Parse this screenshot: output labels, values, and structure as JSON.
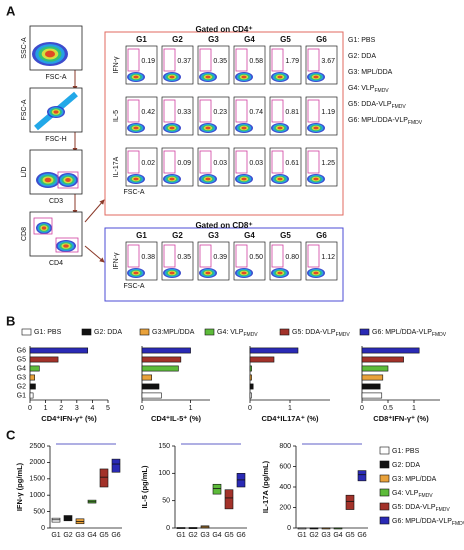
{
  "panels": {
    "A": {
      "label": "A",
      "left_plots": [
        {
          "y": "SSC-A",
          "x": "FSC-A"
        },
        {
          "y": "FSC-A",
          "x": "FSC-H"
        },
        {
          "y": "L/D",
          "x": "CD3"
        },
        {
          "y": "CD8",
          "x": "CD4"
        }
      ],
      "cd4": {
        "title": "Gated on CD4⁺",
        "groups": [
          "G1",
          "G2",
          "G3",
          "G4",
          "G5",
          "G6"
        ],
        "x_axis": "FSC-A",
        "rows": [
          {
            "marker": "IFN-γ",
            "values": [
              "0.19",
              "0.37",
              "0.35",
              "0.58",
              "1.79",
              "3.67"
            ]
          },
          {
            "marker": "IL-5",
            "values": [
              "0.42",
              "0.33",
              "0.23",
              "0.74",
              "0.81",
              "1.19"
            ]
          },
          {
            "marker": "IL-17A",
            "values": [
              "0.02",
              "0.09",
              "0.03",
              "0.03",
              "0.61",
              "1.25"
            ]
          }
        ]
      },
      "cd8": {
        "title": "Gated on CD8⁺",
        "groups": [
          "G1",
          "G2",
          "G3",
          "G4",
          "G5",
          "G6"
        ],
        "x_axis": "FSC-A",
        "rows": [
          {
            "marker": "IFN-γ",
            "values": [
              "0.38",
              "0.35",
              "0.39",
              "0.50",
              "0.80",
              "1.12"
            ]
          }
        ]
      },
      "legend": [
        {
          "text": "G1: PBS"
        },
        {
          "text": "G2: DDA"
        },
        {
          "text": "G3: MPL/DDA"
        },
        {
          "text": "G4: VLP",
          "sub": "FMDV"
        },
        {
          "text": "G5: DDA-VLP",
          "sub": "FMDV"
        },
        {
          "text": "G6: MPL/DDA-VLP",
          "sub": "FMDV"
        }
      ]
    },
    "B": {
      "label": "B",
      "colors": [
        "#ffffff",
        "#111111",
        "#e9a23b",
        "#5dbb3a",
        "#a3322a",
        "#2a2ab5"
      ],
      "legend": [
        {
          "text": "G1: PBS"
        },
        {
          "text": "G2: DDA"
        },
        {
          "text": "G3:MPL/DDA"
        },
        {
          "text": "G4: VLP",
          "sub": "FMDV"
        },
        {
          "text": "G5: DDA-VLP",
          "sub": "FMDV"
        },
        {
          "text": "G6: MPL/DDA-VLP",
          "sub": "FMDV"
        }
      ],
      "categories": [
        "G1",
        "G2",
        "G3",
        "G4",
        "G5",
        "G6"
      ],
      "charts": [
        {
          "type": "bar",
          "xlabel": "CD4⁺IFN-γ⁺ (%)",
          "xlim": [
            0,
            5
          ],
          "xticks": [
            0,
            1,
            2,
            3,
            4,
            5
          ],
          "values": [
            0.2,
            0.35,
            0.3,
            0.6,
            1.8,
            3.7
          ]
        },
        {
          "type": "bar",
          "xlabel": "CD4⁺IL-5⁺ (%)",
          "xlim": [
            0,
            1.4
          ],
          "xticks": [
            0,
            1
          ],
          "values": [
            0.4,
            0.35,
            0.2,
            0.75,
            0.8,
            1.0
          ]
        },
        {
          "type": "bar",
          "xlabel": "CD4⁺IL17A⁺ (%)",
          "xlim": [
            0,
            2
          ],
          "xticks": [
            0,
            1
          ],
          "values": [
            0.03,
            0.08,
            0.04,
            0.04,
            0.6,
            1.2
          ]
        },
        {
          "type": "bar",
          "xlabel": "CD8⁺IFN-γ⁺ (%)",
          "xlim": [
            0,
            1.5
          ],
          "xticks": [
            0,
            0.5,
            1
          ],
          "values": [
            0.38,
            0.35,
            0.4,
            0.5,
            0.8,
            1.1
          ]
        }
      ]
    },
    "C": {
      "label": "C",
      "colors": [
        "#ffffff",
        "#111111",
        "#e9a23b",
        "#5dbb3a",
        "#a3322a",
        "#2a2ab5"
      ],
      "categories": [
        "G1",
        "G2",
        "G3",
        "G4",
        "G5",
        "G6"
      ],
      "legend": [
        {
          "text": "G1: PBS"
        },
        {
          "text": "G2: DDA"
        },
        {
          "text": "G3: MPL/DDA"
        },
        {
          "text": "G4: VLP",
          "sub": "FMDV"
        },
        {
          "text": "G5: DDA-VLP",
          "sub": "FMDV"
        },
        {
          "text": "G6: MPL/DDA-VLP",
          "sub": "FMDV"
        }
      ],
      "charts": [
        {
          "type": "box",
          "ylabel": "IFN-γ (pg/mL)",
          "ylim": [
            0,
            2500
          ],
          "yticks": [
            0,
            500,
            1000,
            1500,
            2000,
            2500
          ],
          "values": [
            250,
            300,
            200,
            800,
            1550,
            1950
          ],
          "low": [
            180,
            220,
            130,
            760,
            1250,
            1700
          ],
          "high": [
            300,
            380,
            280,
            850,
            1800,
            2100
          ]
        },
        {
          "type": "box",
          "ylabel": "IL-5 (pg/mL)",
          "ylim": [
            0,
            150
          ],
          "yticks": [
            0,
            50,
            100,
            150
          ],
          "values": [
            0,
            0,
            2,
            72,
            55,
            88
          ],
          "low": [
            0,
            0,
            0,
            62,
            35,
            75
          ],
          "high": [
            1,
            1,
            4,
            80,
            70,
            100
          ]
        },
        {
          "type": "box",
          "ylabel": "IL-17A (pg/mL)",
          "ylim": [
            0,
            800
          ],
          "yticks": [
            0,
            200,
            400,
            600,
            800
          ],
          "values": [
            0,
            0,
            0,
            0,
            260,
            520
          ],
          "low": [
            0,
            0,
            0,
            0,
            180,
            460
          ],
          "high": [
            2,
            2,
            2,
            2,
            320,
            560
          ]
        }
      ]
    }
  }
}
